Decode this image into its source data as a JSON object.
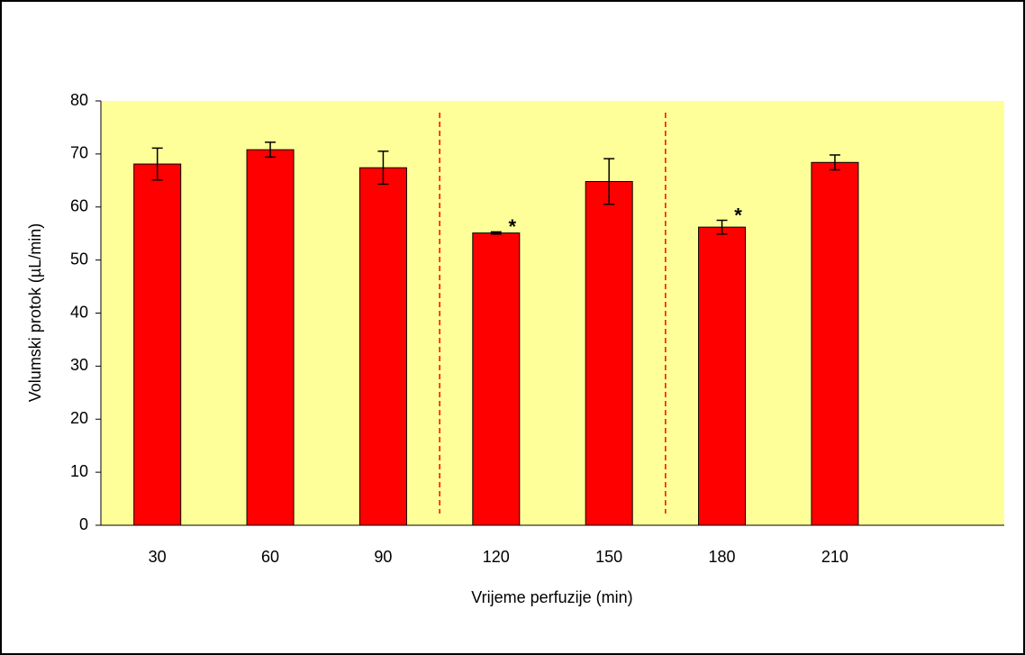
{
  "chart_data": {
    "type": "bar",
    "xlabel": "Vrijeme perfuzije (min)",
    "ylabel": "Volumski protok (µL/min)",
    "categories": [
      "30",
      "60",
      "90",
      "120",
      "150",
      "180",
      "210",
      null
    ],
    "values": [
      68.1,
      70.8,
      67.4,
      55.1,
      64.8,
      56.2,
      68.4,
      null
    ],
    "errors": [
      3.0,
      1.4,
      3.1,
      0.2,
      4.3,
      1.3,
      1.4,
      null
    ],
    "color": "#ff0000",
    "ylim": [
      0,
      80
    ],
    "yticks": [
      0,
      10,
      20,
      30,
      40,
      50,
      60,
      70,
      80
    ],
    "annotations": [
      {
        "text": "*",
        "x": "120"
      },
      {
        "text": "*",
        "x": "180"
      }
    ]
  }
}
